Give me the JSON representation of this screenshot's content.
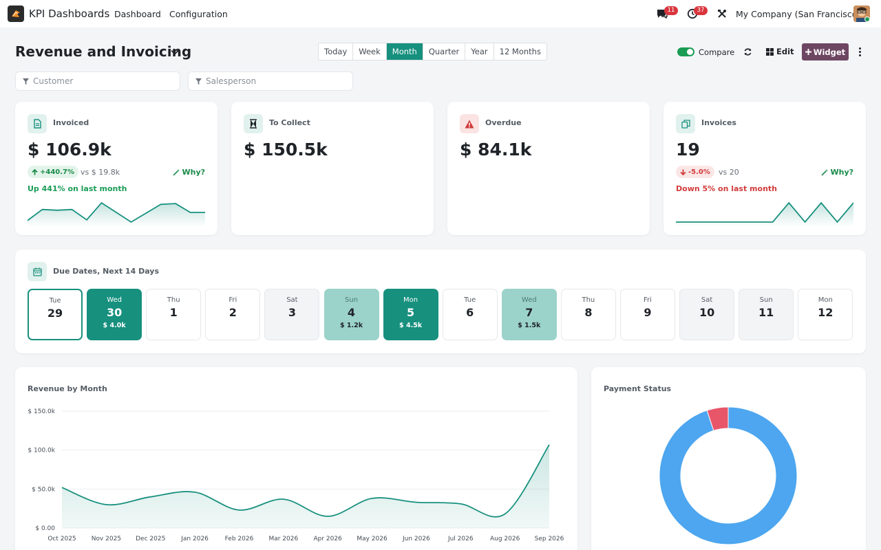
{
  "topbar": {
    "app_title": "KPI Dashboards",
    "nav": [
      "Dashboard",
      "Configuration"
    ],
    "messages_count": "11",
    "activities_count": "37",
    "company": "My Company (San Francisco)"
  },
  "header": {
    "title": "Revenue and Invoicing",
    "periods": [
      {
        "label": "Today",
        "active": false
      },
      {
        "label": "Week",
        "active": false
      },
      {
        "label": "Month",
        "active": true
      },
      {
        "label": "Quarter",
        "active": false
      },
      {
        "label": "Year",
        "active": false
      },
      {
        "label": "12 Months",
        "active": false
      }
    ],
    "compare_label": "Compare",
    "compare_on": true,
    "edit_label": "Edit",
    "widget_label": "Widget"
  },
  "filters": {
    "customer_placeholder": "Customer",
    "salesperson_placeholder": "Salesperson"
  },
  "kpis": {
    "invoiced": {
      "label": "Invoiced",
      "value": "$ 106.9k",
      "delta": "+440.7%",
      "vs": "vs $ 19.8k",
      "why": "Why?",
      "trend": "Up 441% on last month",
      "spark": [
        3,
        18,
        17,
        18,
        4,
        27,
        14,
        1,
        13,
        25,
        26,
        14,
        14
      ]
    },
    "to_collect": {
      "label": "To Collect",
      "value": "$ 150.5k"
    },
    "overdue": {
      "label": "Overdue",
      "value": "$ 84.1k"
    },
    "invoices": {
      "label": "Invoices",
      "value": "19",
      "delta": "-5.0%",
      "vs": "vs 20",
      "why": "Why?",
      "trend": "Down 5% on last month",
      "spark": [
        0,
        0,
        0,
        0,
        0,
        0,
        0,
        1,
        0,
        1,
        0,
        1
      ]
    }
  },
  "due_dates": {
    "title": "Due Dates, Next 14 Days",
    "days": [
      {
        "dow": "Tue",
        "num": "29",
        "amount": "",
        "style": "today"
      },
      {
        "dow": "Wed",
        "num": "30",
        "amount": "$ 4.0k",
        "style": "strong"
      },
      {
        "dow": "Thu",
        "num": "1",
        "amount": "",
        "style": "normal"
      },
      {
        "dow": "Fri",
        "num": "2",
        "amount": "",
        "style": "normal"
      },
      {
        "dow": "Sat",
        "num": "3",
        "amount": "",
        "style": "weekend"
      },
      {
        "dow": "Sun",
        "num": "4",
        "amount": "$ 1.2k",
        "style": "light"
      },
      {
        "dow": "Mon",
        "num": "5",
        "amount": "$ 4.5k",
        "style": "strong"
      },
      {
        "dow": "Tue",
        "num": "6",
        "amount": "",
        "style": "normal"
      },
      {
        "dow": "Wed",
        "num": "7",
        "amount": "$ 1.5k",
        "style": "light"
      },
      {
        "dow": "Thu",
        "num": "8",
        "amount": "",
        "style": "normal"
      },
      {
        "dow": "Fri",
        "num": "9",
        "amount": "",
        "style": "normal"
      },
      {
        "dow": "Sat",
        "num": "10",
        "amount": "",
        "style": "weekend"
      },
      {
        "dow": "Sun",
        "num": "11",
        "amount": "",
        "style": "weekend"
      },
      {
        "dow": "Mon",
        "num": "12",
        "amount": "",
        "style": "normal"
      }
    ]
  },
  "revenue_chart": {
    "title": "Revenue by Month"
  },
  "payment_chart": {
    "title": "Payment Status"
  },
  "colors": {
    "accent": "#17907e",
    "brand": "#6d4662",
    "line": "#17907e",
    "donut_main": "#4da6ef",
    "donut_slice": "#e8566a"
  },
  "chart_data": [
    {
      "type": "area",
      "title": "Revenue by Month",
      "categories": [
        "Oct 2025",
        "Nov 2025",
        "Dec 2025",
        "Jan 2026",
        "Feb 2026",
        "Mar 2026",
        "Apr 2026",
        "May 2026",
        "Jun 2026",
        "Jul 2026",
        "Aug 2026",
        "Sep 2026"
      ],
      "values": [
        52000,
        30000,
        40000,
        46000,
        23000,
        37000,
        15000,
        38000,
        33000,
        31000,
        18000,
        106900
      ],
      "y_ticks": [
        "$ 0.00",
        "$ 50.0k",
        "$ 100.0k",
        "$ 150.0k"
      ],
      "ylim": [
        0,
        150000
      ],
      "grid": true
    },
    {
      "type": "pie",
      "title": "Payment Status",
      "values": [
        95,
        5
      ],
      "donut": true
    }
  ]
}
